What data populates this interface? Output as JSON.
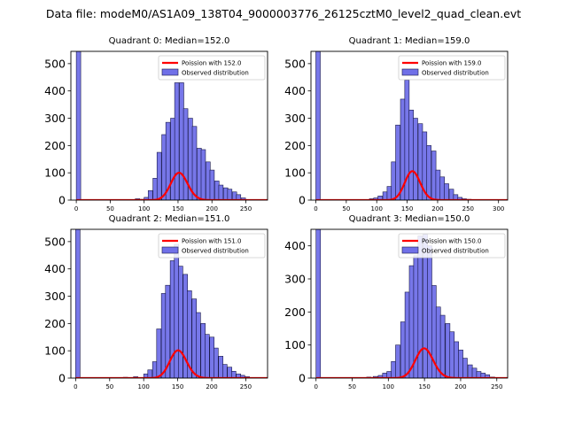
{
  "figure_title": "Data file: modeM0/AS1A09_138T04_9000003776_26125cztM0_level2_quad_clean.evt",
  "colors": {
    "bar_fill": "#7070e8",
    "bar_stroke": "#1a1a4a",
    "poisson_line": "#ff0000",
    "axes": "#000000"
  },
  "chart_data": [
    {
      "type": "bar",
      "title": "Quadrant 0: Median=152.0",
      "xlim": [
        -8,
        282
      ],
      "ylim": [
        0,
        545
      ],
      "xticks": [
        0,
        50,
        100,
        150,
        200,
        250
      ],
      "yticks": [
        0,
        100,
        200,
        300,
        400,
        500
      ],
      "bin_width": 6.5,
      "bin_starts": [
        0,
        80,
        87,
        93,
        100,
        106,
        113,
        119,
        126,
        132,
        139,
        145,
        152,
        158,
        165,
        171,
        178,
        184,
        191,
        197,
        204,
        210,
        217,
        223,
        230,
        236,
        243,
        249
      ],
      "counts": [
        545,
        2,
        5,
        3,
        10,
        35,
        80,
        175,
        240,
        285,
        300,
        430,
        430,
        335,
        300,
        270,
        190,
        185,
        140,
        110,
        70,
        55,
        45,
        40,
        30,
        20,
        8,
        2
      ],
      "poisson": {
        "mean": 152.0,
        "scale": 3100
      },
      "legend": [
        "Poission with 152.0",
        "Observed distribution"
      ]
    },
    {
      "type": "bar",
      "title": "Quadrant 1: Median=159.0",
      "xlim": [
        -8,
        315
      ],
      "ylim": [
        0,
        545
      ],
      "xticks": [
        0,
        50,
        100,
        150,
        200,
        250,
        300
      ],
      "yticks": [
        0,
        100,
        200,
        300,
        400,
        500
      ],
      "bin_width": 7.3,
      "bin_starts": [
        0,
        80,
        88,
        95,
        102,
        110,
        117,
        124,
        131,
        139,
        146,
        153,
        160,
        168,
        175,
        182,
        190,
        197,
        204,
        211,
        219,
        226,
        233,
        240,
        248,
        255,
        262
      ],
      "counts": [
        545,
        2,
        5,
        8,
        15,
        30,
        50,
        140,
        275,
        370,
        440,
        330,
        300,
        280,
        250,
        200,
        180,
        110,
        85,
        60,
        40,
        20,
        10,
        5,
        3,
        2,
        1
      ],
      "poisson": {
        "mean": 159.0,
        "scale": 3350
      },
      "legend": [
        "Poission with 159.0",
        "Observed distribution"
      ]
    },
    {
      "type": "bar",
      "title": "Quadrant 2: Median=151.0",
      "xlim": [
        -7,
        282
      ],
      "ylim": [
        0,
        545
      ],
      "xticks": [
        0,
        50,
        100,
        150,
        200,
        250
      ],
      "yticks": [
        0,
        100,
        200,
        300,
        400,
        500
      ],
      "bin_width": 6.5,
      "bin_starts": [
        0,
        70,
        85,
        100,
        106,
        113,
        119,
        126,
        132,
        139,
        145,
        151,
        158,
        164,
        171,
        177,
        184,
        190,
        197,
        203,
        210,
        216,
        223,
        229,
        236,
        242,
        249
      ],
      "counts": [
        545,
        3,
        5,
        15,
        30,
        60,
        180,
        310,
        340,
        430,
        490,
        410,
        380,
        320,
        290,
        240,
        200,
        160,
        150,
        110,
        80,
        50,
        40,
        25,
        15,
        10,
        5
      ],
      "poisson": {
        "mean": 151.0,
        "scale": 3130
      },
      "legend": [
        "Poission with 151.0",
        "Observed distribution"
      ]
    },
    {
      "type": "bar",
      "title": "Quadrant 3: Median=150.0",
      "xlim": [
        -7,
        265
      ],
      "ylim": [
        0,
        450
      ],
      "xticks": [
        0,
        50,
        100,
        150,
        200,
        250
      ],
      "yticks": [
        0,
        100,
        200,
        300,
        400
      ],
      "bin_width": 6.2,
      "bin_starts": [
        0,
        70,
        79,
        86,
        92,
        98,
        104,
        110,
        117,
        123,
        129,
        135,
        141,
        148,
        154,
        160,
        166,
        172,
        179,
        185,
        191,
        197,
        203,
        210,
        216,
        222,
        228,
        234,
        241
      ],
      "counts": [
        450,
        3,
        5,
        8,
        15,
        20,
        50,
        100,
        170,
        260,
        340,
        370,
        430,
        435,
        400,
        280,
        215,
        190,
        165,
        140,
        110,
        85,
        60,
        40,
        30,
        20,
        15,
        10,
        3
      ],
      "poisson": {
        "mean": 150.0,
        "scale": 2760
      },
      "legend": [
        "Poission with 150.0",
        "Observed distribution"
      ]
    }
  ]
}
